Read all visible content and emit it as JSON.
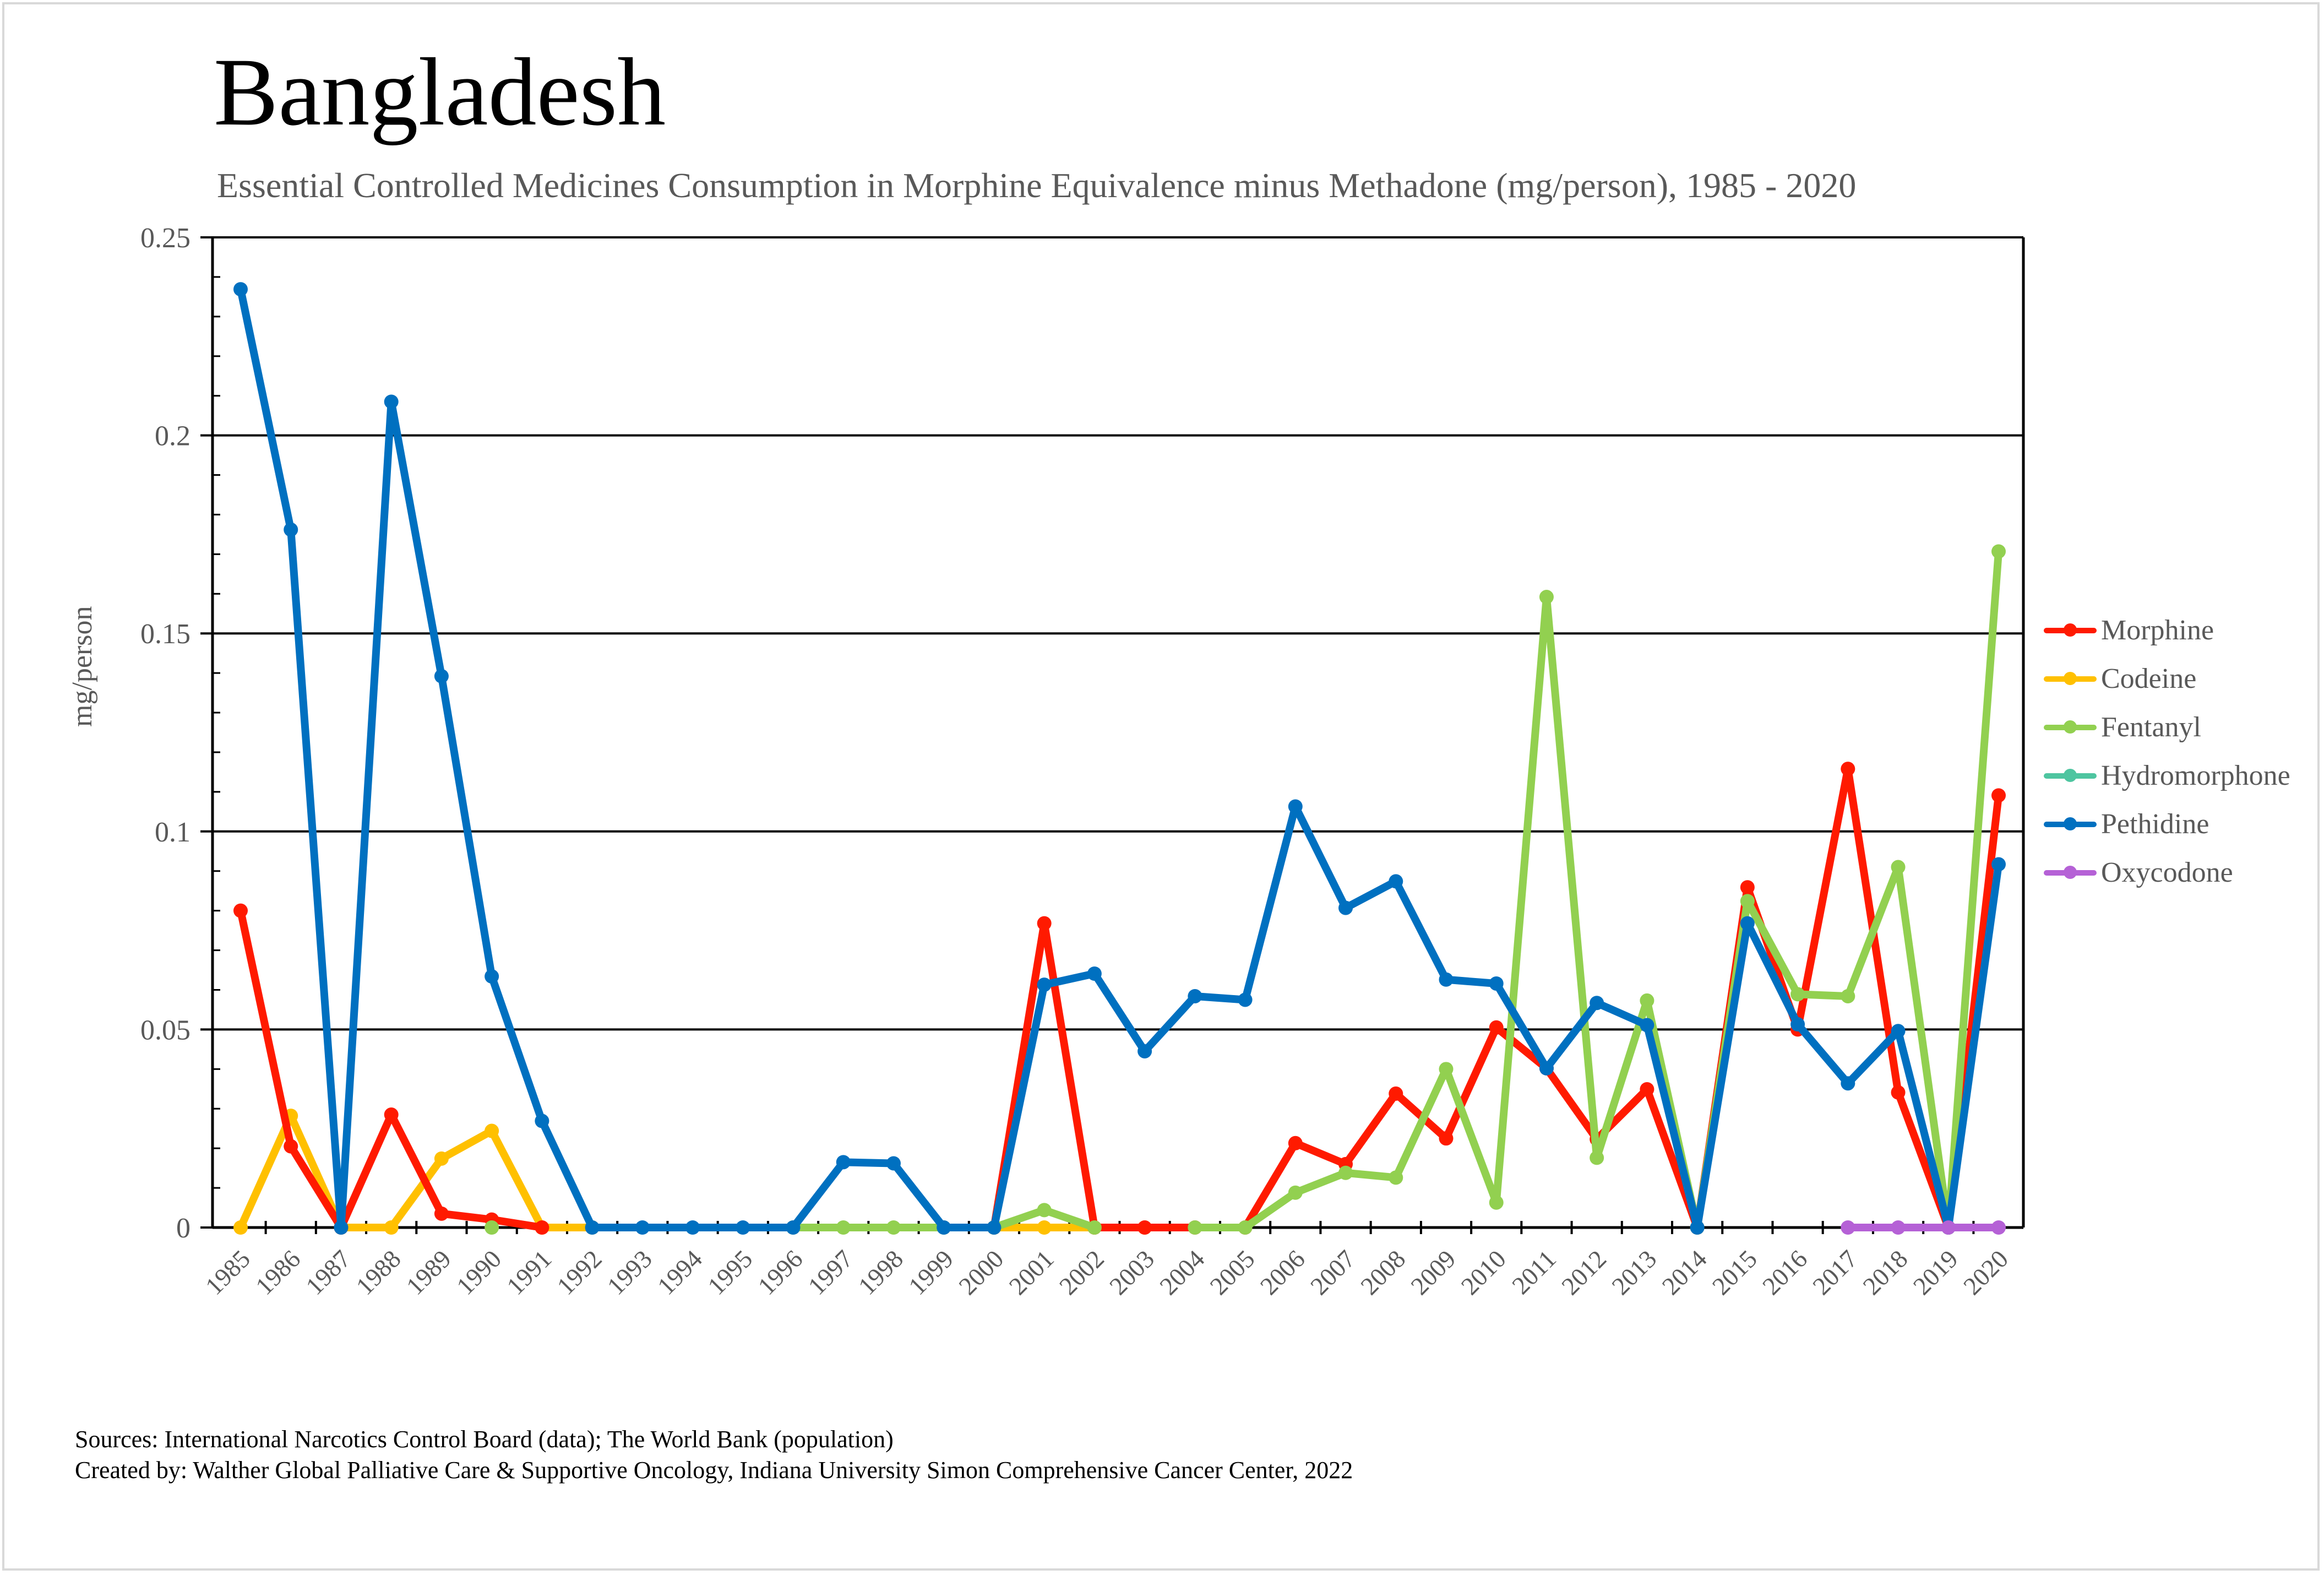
{
  "header": {
    "title": "Bangladesh",
    "subtitle": "Essential Controlled Medicines Consumption in Morphine Equivalence minus Methadone (mg/person), 1985 - 2020"
  },
  "footer": {
    "sources": "Sources: International Narcotics Control Board (data); The World Bank (population)",
    "created_by": "Created by: Walther Global Palliative Care & Supportive Oncology, Indiana University Simon Comprehensive Cancer Center, 2022"
  },
  "chart_data": {
    "type": "line",
    "title": "Bangladesh",
    "subtitle": "Essential Controlled Medicines Consumption in Morphine Equivalence minus Methadone (mg/person), 1985 - 2020",
    "xlabel": "",
    "ylabel": "mg/person",
    "ylim": [
      0,
      0.25
    ],
    "yticks": [
      0,
      0.05,
      0.1,
      0.15,
      0.2,
      0.25
    ],
    "ytick_labels": [
      "0",
      "0.05",
      "0.1",
      "0.15",
      "0.2",
      "0.25"
    ],
    "grid": "horizontal major",
    "legend_position": "right",
    "x": [
      1985,
      1986,
      1987,
      1988,
      1989,
      1990,
      1991,
      1992,
      1993,
      1994,
      1995,
      1996,
      1997,
      1998,
      1999,
      2000,
      2001,
      2002,
      2003,
      2004,
      2005,
      2006,
      2007,
      2008,
      2009,
      2010,
      2011,
      2012,
      2013,
      2014,
      2015,
      2016,
      2017,
      2018,
      2019,
      2020
    ],
    "series": [
      {
        "name": "Morphine",
        "color": "#FF1A00",
        "values": [
          0.08,
          0.0205,
          0,
          0.0285,
          0.0035,
          0.002,
          0,
          null,
          null,
          null,
          null,
          null,
          null,
          null,
          null,
          0,
          0.0768,
          0,
          0,
          0,
          0,
          0.0213,
          0.016,
          0.0338,
          0.0225,
          0.0505,
          0.0402,
          0.0223,
          0.0349,
          0,
          0.0859,
          0.05,
          0.1158,
          0.0341,
          0,
          0.1091
        ]
      },
      {
        "name": "Codeine",
        "color": "#FFC000",
        "values": [
          0,
          0.0282,
          0,
          0,
          0.0174,
          0.0244,
          0,
          0,
          null,
          null,
          null,
          null,
          null,
          null,
          null,
          0,
          0,
          0,
          0,
          null,
          null,
          null,
          null,
          null,
          null,
          null,
          null,
          null,
          null,
          null,
          null,
          null,
          null,
          null,
          null,
          null
        ]
      },
      {
        "name": "Fentanyl",
        "color": "#92D050",
        "values": [
          null,
          null,
          null,
          null,
          null,
          0,
          null,
          null,
          null,
          null,
          null,
          0,
          0,
          0,
          0,
          0,
          0.0044,
          0,
          null,
          0,
          0,
          0.0088,
          0.0138,
          0.0126,
          0.04,
          0.0063,
          0.1592,
          0.0176,
          0.0573,
          0,
          0.0824,
          0.0589,
          0.0584,
          0.091,
          0,
          0.1707
        ]
      },
      {
        "name": "Hydromorphone",
        "color": "#4EC5A0",
        "values": [
          null,
          null,
          null,
          null,
          null,
          null,
          null,
          null,
          null,
          null,
          null,
          null,
          null,
          null,
          null,
          null,
          null,
          null,
          null,
          null,
          null,
          null,
          null,
          null,
          null,
          null,
          null,
          null,
          null,
          null,
          null,
          null,
          null,
          null,
          null,
          null
        ]
      },
      {
        "name": "Pethidine",
        "color": "#0070C0",
        "values": [
          0.2369,
          0.1762,
          0,
          0.2085,
          0.1392,
          0.0634,
          0.0269,
          0,
          0,
          0,
          0,
          0,
          0.0165,
          0.0162,
          0,
          0,
          0.0613,
          0.0641,
          0.0445,
          0.0584,
          0.0575,
          0.1063,
          0.0807,
          0.0874,
          0.0626,
          0.0616,
          0.0402,
          0.0567,
          0.0511,
          0,
          0.0768,
          0.0513,
          0.0364,
          0.0496,
          0,
          0.0917
        ]
      },
      {
        "name": "Oxycodone",
        "color": "#B561D6",
        "values": [
          null,
          null,
          null,
          null,
          null,
          null,
          null,
          null,
          null,
          null,
          null,
          null,
          null,
          null,
          null,
          null,
          null,
          null,
          null,
          null,
          null,
          null,
          null,
          null,
          null,
          null,
          null,
          null,
          null,
          null,
          null,
          null,
          0,
          0,
          0,
          0
        ]
      }
    ]
  }
}
